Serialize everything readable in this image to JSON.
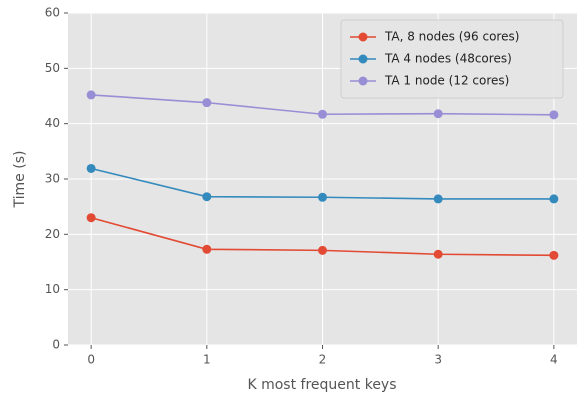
{
  "chart_data": {
    "type": "line",
    "xlabel": "K most frequent keys",
    "ylabel": "Time (s)",
    "x": [
      0,
      1,
      2,
      3,
      4
    ],
    "series": [
      {
        "name": "TA, 8 nodes (96 cores)",
        "color": "#E24A33",
        "values": [
          23.0,
          17.3,
          17.1,
          16.4,
          16.2
        ]
      },
      {
        "name": "TA 4 nodes (48cores)",
        "color": "#348ABD",
        "values": [
          31.9,
          26.8,
          26.7,
          26.4,
          26.4
        ]
      },
      {
        "name": "TA 1 node (12 cores)",
        "color": "#988ED5",
        "values": [
          45.2,
          43.8,
          41.7,
          41.8,
          41.6
        ]
      }
    ],
    "xlim": [
      -0.2,
      4.2
    ],
    "xticks": [
      0,
      1,
      2,
      3,
      4
    ],
    "ylim": [
      0,
      60
    ],
    "yticks": [
      0,
      10,
      20,
      30,
      40,
      50,
      60
    ],
    "grid": true,
    "legend": "upper right"
  }
}
